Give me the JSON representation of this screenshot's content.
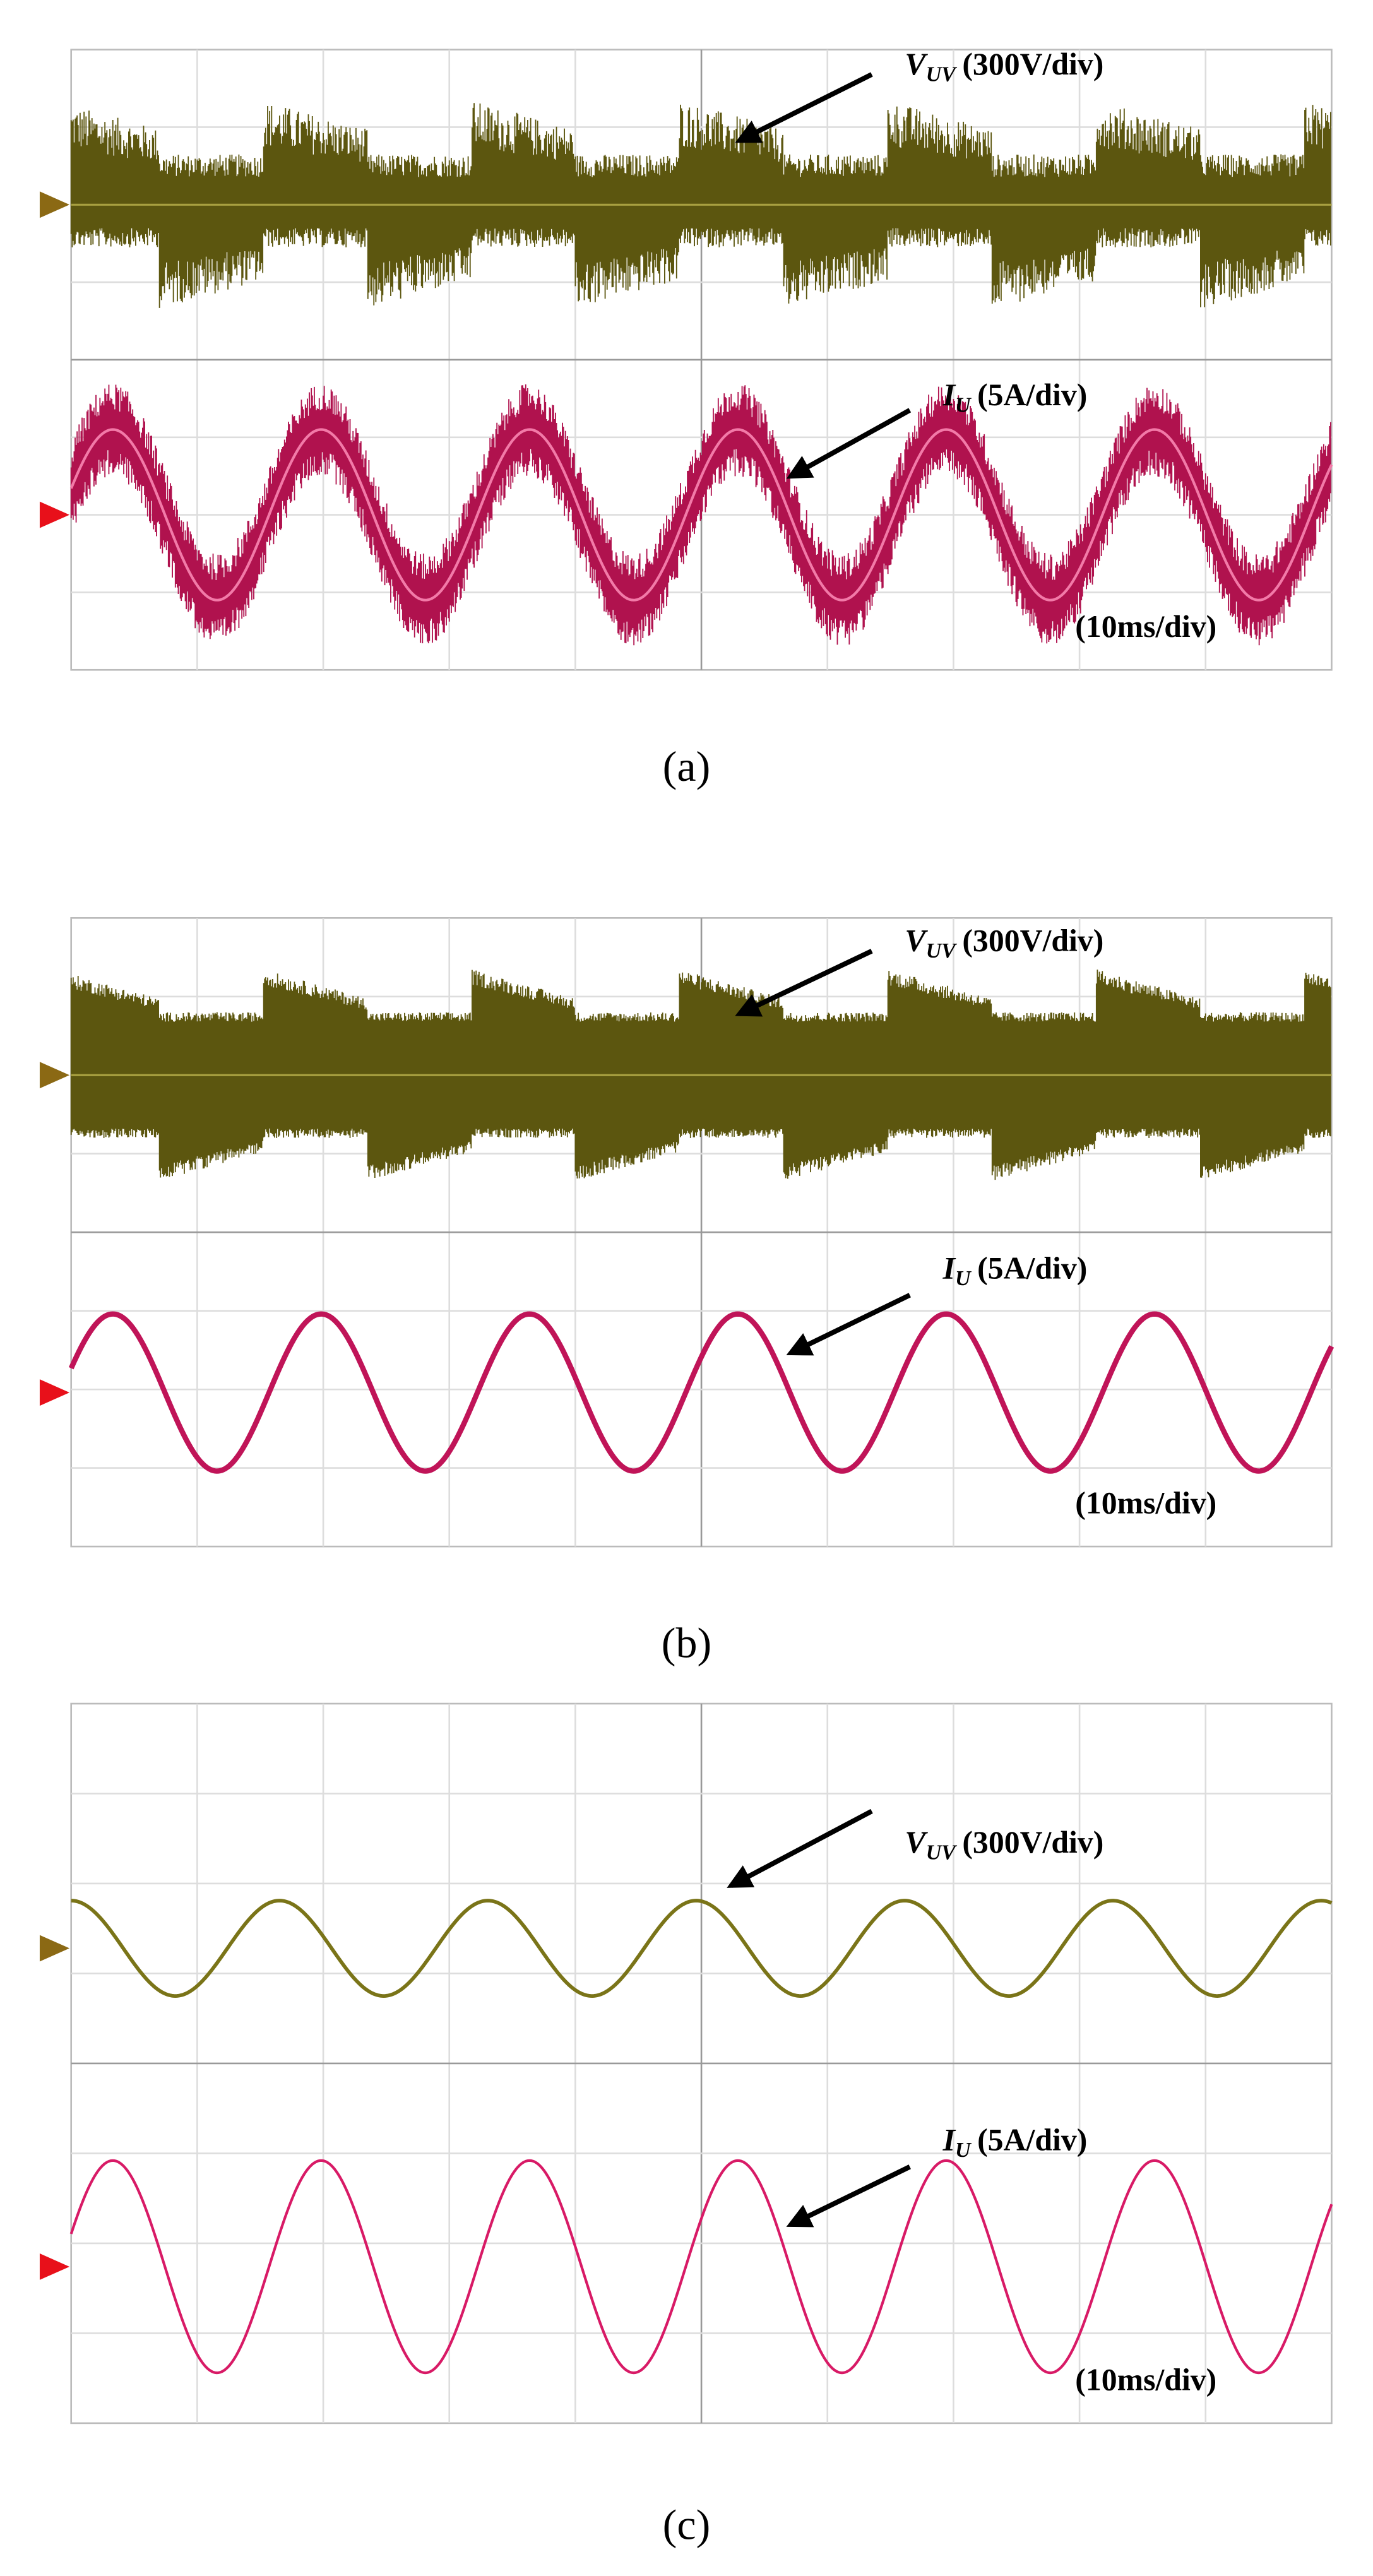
{
  "panels": [
    {
      "voltage_label": {
        "symbol": "V",
        "subscript": "UV",
        "scale": "(300V/div)"
      },
      "current_label": {
        "symbol": "I",
        "subscript": "U",
        "scale": "(5A/div)"
      },
      "timebase": "(10ms/div)",
      "caption": "(a)"
    },
    {
      "voltage_label": {
        "symbol": "V",
        "subscript": "UV",
        "scale": "(300V/div)"
      },
      "current_label": {
        "symbol": "I",
        "subscript": "U",
        "scale": "(5A/div)"
      },
      "timebase": "(10ms/div)",
      "caption": "(b)"
    },
    {
      "voltage_label": {
        "symbol": "V",
        "subscript": "UV",
        "scale": "(300V/div)"
      },
      "current_label": {
        "symbol": "I",
        "subscript": "U",
        "scale": "(5A/div)"
      },
      "timebase": "(10ms/div)",
      "caption": "(c)"
    }
  ]
}
